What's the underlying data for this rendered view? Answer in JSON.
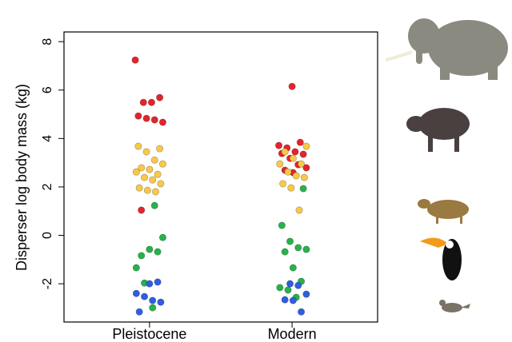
{
  "chart_data": {
    "type": "strip",
    "ylabel": "Disperser log body mass (kg)",
    "categories": [
      "Pleistocene",
      "Modern"
    ],
    "ylim": [
      -3.58,
      8.4
    ],
    "yticks": [
      -2,
      0,
      2,
      4,
      6,
      8
    ],
    "series": [
      {
        "color": "#e3242b",
        "x": [
          "Pleistocene",
          "Pleistocene",
          "Pleistocene",
          "Pleistocene",
          "Pleistocene",
          "Pleistocene",
          "Pleistocene",
          "Pleistocene",
          "Pleistocene",
          "Modern",
          "Modern",
          "Modern",
          "Modern",
          "Modern",
          "Modern",
          "Modern",
          "Modern",
          "Modern",
          "Modern",
          "Modern",
          "Modern"
        ],
        "values": [
          7.24,
          5.49,
          5.49,
          5.69,
          4.93,
          4.83,
          4.77,
          4.67,
          1.04,
          6.15,
          3.84,
          3.71,
          3.61,
          3.45,
          3.35,
          3.38,
          3.18,
          2.92,
          2.79,
          2.69,
          2.59
        ]
      },
      {
        "color": "#f7c948",
        "x": [
          "Pleistocene",
          "Pleistocene",
          "Pleistocene",
          "Pleistocene",
          "Pleistocene",
          "Pleistocene",
          "Pleistocene",
          "Pleistocene",
          "Pleistocene",
          "Pleistocene",
          "Pleistocene",
          "Pleistocene",
          "Pleistocene",
          "Pleistocene",
          "Pleistocene",
          "Modern",
          "Modern",
          "Modern",
          "Modern",
          "Modern",
          "Modern",
          "Modern",
          "Modern",
          "Modern",
          "Modern",
          "Modern"
        ],
        "values": [
          3.58,
          3.68,
          3.45,
          3.11,
          2.95,
          2.79,
          2.72,
          2.52,
          2.62,
          2.39,
          2.29,
          2.13,
          1.96,
          1.86,
          1.8,
          3.68,
          3.45,
          3.18,
          2.95,
          2.95,
          2.62,
          2.46,
          2.39,
          2.13,
          1.96,
          1.04
        ]
      },
      {
        "color": "#27b24a",
        "x": [
          "Pleistocene",
          "Pleistocene",
          "Pleistocene",
          "Pleistocene",
          "Pleistocene",
          "Pleistocene",
          "Pleistocene",
          "Pleistocene",
          "Modern",
          "Modern",
          "Modern",
          "Modern",
          "Modern",
          "Modern",
          "Modern",
          "Modern",
          "Modern",
          "Modern",
          "Modern"
        ],
        "values": [
          1.23,
          -0.09,
          -0.84,
          -0.58,
          -0.68,
          -1.34,
          -1.97,
          -2.99,
          1.93,
          0.41,
          -0.25,
          -0.51,
          -0.58,
          -0.68,
          -1.34,
          -1.9,
          -2.16,
          -2.26,
          -2.56
        ]
      },
      {
        "color": "#2f5fe0",
        "x": [
          "Pleistocene",
          "Pleistocene",
          "Pleistocene",
          "Pleistocene",
          "Pleistocene",
          "Pleistocene",
          "Pleistocene",
          "Modern",
          "Modern",
          "Modern",
          "Modern",
          "Modern",
          "Modern"
        ],
        "values": [
          -2.0,
          -1.93,
          -2.4,
          -2.53,
          -2.69,
          -2.76,
          -3.16,
          -2.0,
          -2.07,
          -2.43,
          -2.66,
          -2.69,
          -3.16
        ]
      }
    ]
  }
}
